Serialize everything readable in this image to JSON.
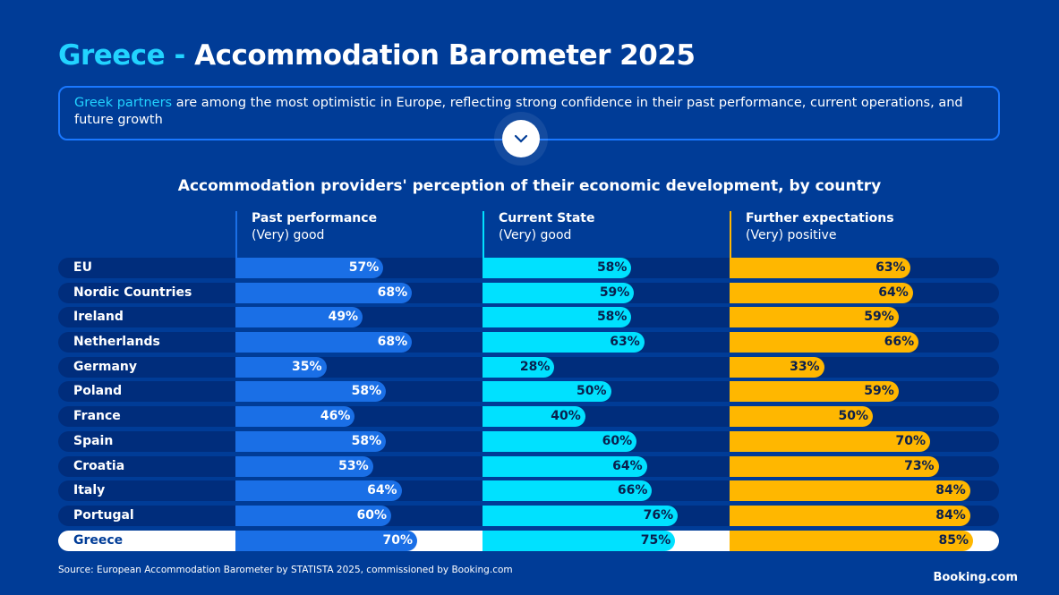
{
  "header": {
    "title_highlight": "Greece - ",
    "title_rest": "Accommodation Barometer 2025"
  },
  "callout": {
    "highlight": "Greek partners",
    "text": " are among the most optimistic in Europe, reflecting strong confidence in their past performance, current operations, and future growth"
  },
  "colors": {
    "background": "#003c97",
    "past": "#1a6fe6",
    "current": "#00e1ff",
    "future": "#ffb700",
    "row": "#002d7c",
    "highlight_row": "#ffffff"
  },
  "chart_data": {
    "type": "bar",
    "title": "Accommodation providers' perception of their economic development, by country",
    "categories": [
      "EU",
      "Nordic Countries",
      "Ireland",
      "Netherlands",
      "Germany",
      "Poland",
      "France",
      "Spain",
      "Croatia",
      "Italy",
      "Portugal",
      "Greece"
    ],
    "highlight": "Greece",
    "series": [
      {
        "name": "Past performance",
        "sub": "(Very) good",
        "values": [
          57,
          68,
          49,
          68,
          35,
          58,
          46,
          58,
          53,
          64,
          60,
          70
        ]
      },
      {
        "name": "Current State",
        "sub": "(Very) good",
        "values": [
          58,
          59,
          58,
          63,
          28,
          50,
          40,
          60,
          64,
          66,
          76,
          75
        ]
      },
      {
        "name": "Further expectations",
        "sub": "(Very) positive",
        "values": [
          63,
          64,
          59,
          66,
          33,
          59,
          50,
          70,
          73,
          84,
          84,
          85
        ]
      }
    ],
    "unit": "%"
  },
  "footer": {
    "source": "Source: European Accommodation Barometer by STATISTA 2025, commissioned by Booking.com",
    "logo": "Booking.com"
  }
}
